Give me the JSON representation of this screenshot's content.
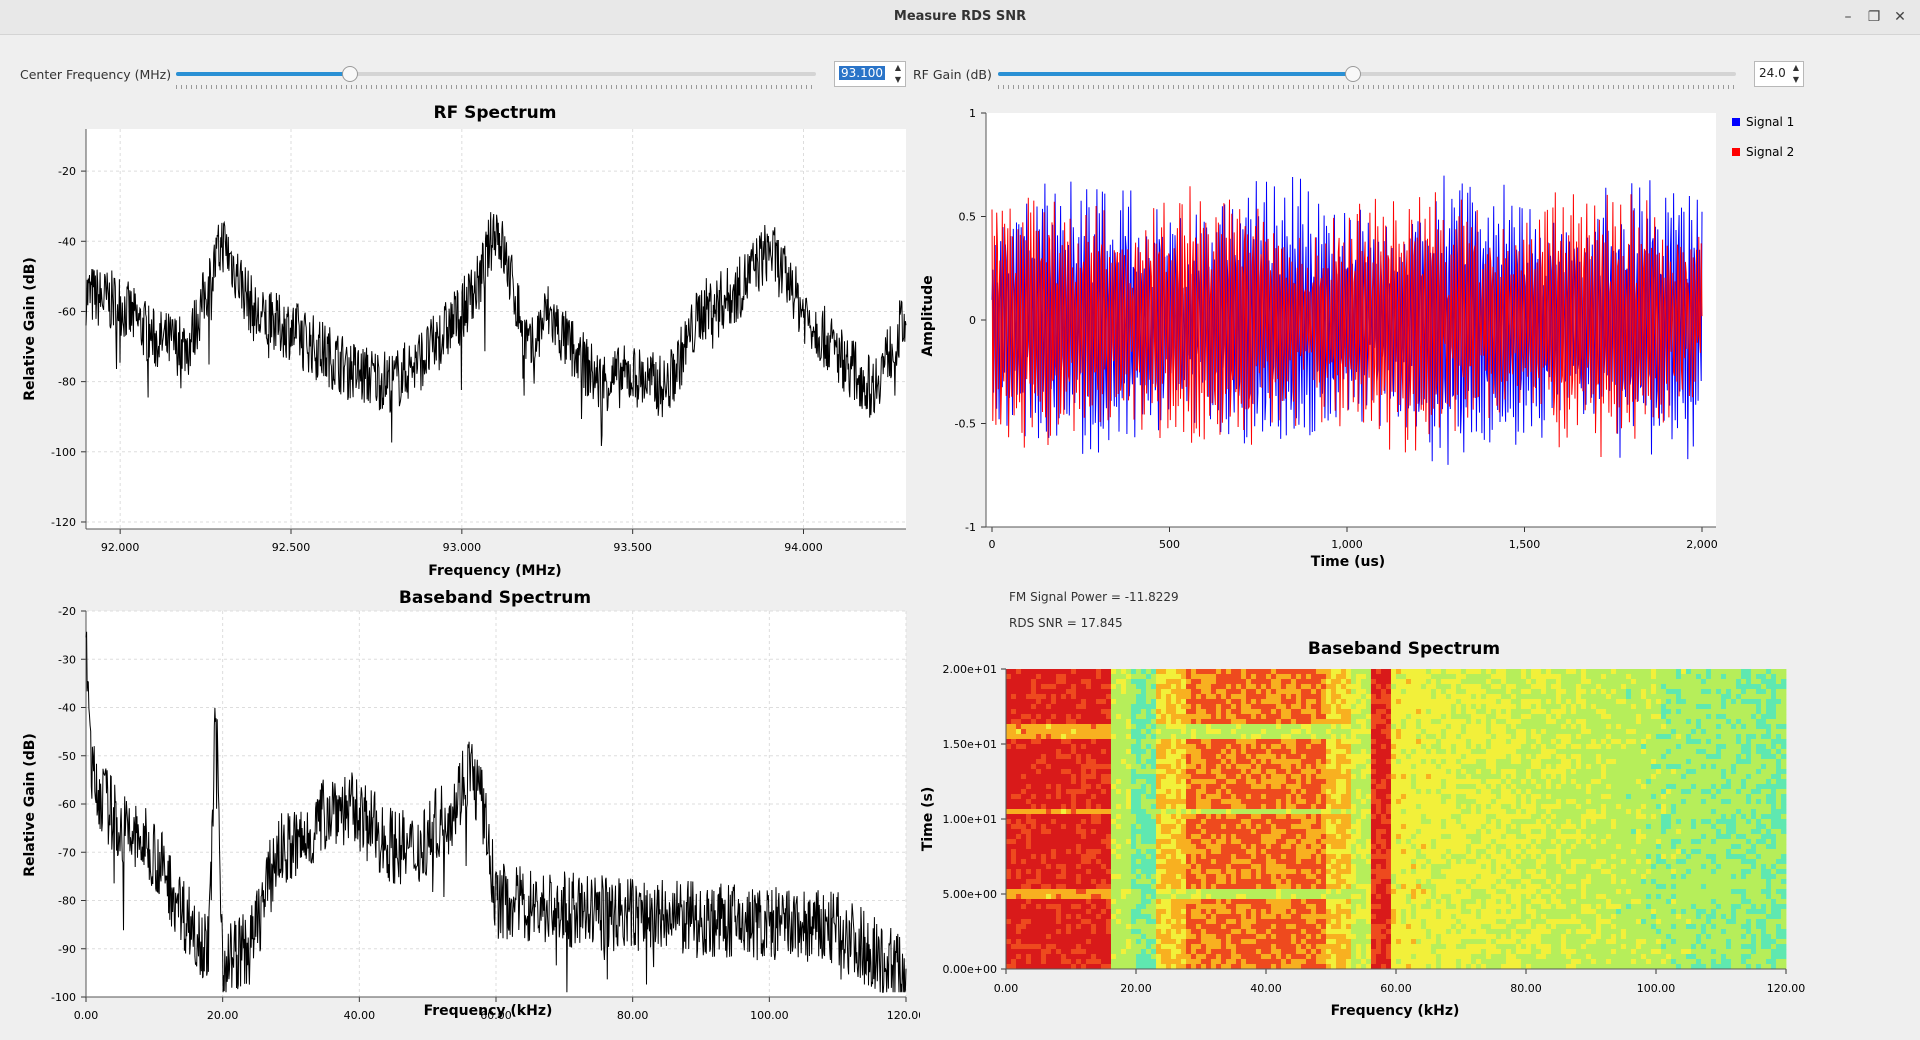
{
  "window": {
    "title": "Measure RDS SNR",
    "controls": {
      "minimize": "–",
      "restore": "❐",
      "close": "✕"
    }
  },
  "controls": {
    "center_freq": {
      "label": "Center Frequency (MHz)",
      "value": "93.100",
      "fraction": 0.27
    },
    "rf_gain": {
      "label": "RF Gain (dB)",
      "value": "24.0",
      "fraction": 0.48
    },
    "spin_up": "▲",
    "spin_down": "▼"
  },
  "rf_spectrum": {
    "title": "RF Spectrum",
    "xlabel": "Frequency (MHz)",
    "ylabel": "Relative Gain (dB)",
    "yticks": [
      "-20",
      "-40",
      "-60",
      "-80",
      "-100",
      "-120"
    ],
    "xticks": [
      "92.000",
      "92.500",
      "93.000",
      "93.500",
      "94.000"
    ]
  },
  "time_plot": {
    "xlabel": "Time (us)",
    "ylabel": "Amplitude",
    "yticks": [
      "1",
      "0.5",
      "0",
      "-0.5",
      "-1"
    ],
    "xticks": [
      "0",
      "500",
      "1,000",
      "1,500",
      "2,000"
    ],
    "legend": [
      "Signal 1",
      "Signal 2"
    ]
  },
  "baseband_spectrum": {
    "title": "Baseband Spectrum",
    "xlabel": "Frequency (kHz)",
    "ylabel": "Relative Gain (dB)",
    "yticks": [
      "-20",
      "-30",
      "-40",
      "-50",
      "-60",
      "-70",
      "-80",
      "-90",
      "-100"
    ],
    "xticks": [
      "0.00",
      "20.00",
      "40.00",
      "60.00",
      "80.00",
      "100.00",
      "120.00"
    ]
  },
  "waterfall": {
    "title": "Baseband Spectrum",
    "xlabel": "Frequency (kHz)",
    "ylabel": "Time (s)",
    "yticks": [
      "2.00e+01",
      "1.50e+01",
      "1.00e+01",
      "5.00e+00",
      "0.00e+00"
    ],
    "xticks": [
      "0.00",
      "20.00",
      "40.00",
      "60.00",
      "80.00",
      "100.00",
      "120.00"
    ]
  },
  "readouts": {
    "fm_power": "FM Signal Power = -11.8229",
    "rds_snr": "RDS SNR = 17.845"
  },
  "colors": {
    "signal1": "#0000ff",
    "signal2": "#ff0000",
    "slider_fill": "#2a90d4"
  },
  "chart_data": [
    {
      "type": "line",
      "title": "RF Spectrum",
      "xlabel": "Frequency (MHz)",
      "ylabel": "Relative Gain (dB)",
      "xlim": [
        91.9,
        94.3
      ],
      "ylim": [
        -122,
        -8
      ],
      "grid": true,
      "series": [
        {
          "x": [
            91.9,
            92.0,
            92.1,
            92.2,
            92.3,
            92.4,
            92.5,
            92.6,
            92.7,
            92.8,
            92.9,
            93.0,
            93.05,
            93.1,
            93.2,
            93.25,
            93.3,
            93.4,
            93.5,
            93.6,
            93.7,
            93.8,
            93.9,
            94.0,
            94.1,
            94.2,
            94.3
          ],
          "values": [
            -55,
            -58,
            -68,
            -70,
            -40,
            -62,
            -65,
            -72,
            -78,
            -80,
            -72,
            -60,
            -52,
            -35,
            -72,
            -60,
            -68,
            -80,
            -78,
            -82,
            -60,
            -55,
            -42,
            -60,
            -72,
            -82,
            -62
          ]
        }
      ]
    },
    {
      "type": "line",
      "xlabel": "Time (us)",
      "ylabel": "Amplitude",
      "xlim": [
        0,
        2000
      ],
      "ylim": [
        -1,
        1
      ],
      "grid": false,
      "legend": "top-right",
      "series": [
        {
          "name": "Signal 1",
          "amplitude": 0.55
        },
        {
          "name": "Signal 2",
          "amplitude": 0.5
        }
      ]
    },
    {
      "type": "line",
      "title": "Baseband Spectrum",
      "xlabel": "Frequency (kHz)",
      "ylabel": "Relative Gain (dB)",
      "xlim": [
        0,
        120
      ],
      "ylim": [
        -100,
        -20
      ],
      "grid": true,
      "series": [
        {
          "x": [
            0,
            1,
            5,
            10,
            14,
            18,
            19,
            20,
            24,
            28,
            32,
            36,
            40,
            44,
            48,
            54,
            56,
            58,
            60,
            70,
            80,
            90,
            100,
            110,
            120
          ],
          "values": [
            -30,
            -55,
            -65,
            -70,
            -82,
            -90,
            -38,
            -92,
            -90,
            -70,
            -68,
            -60,
            -62,
            -68,
            -70,
            -60,
            -52,
            -60,
            -80,
            -82,
            -83,
            -84,
            -85,
            -86,
            -95
          ]
        }
      ]
    },
    {
      "type": "heatmap",
      "title": "Baseband Spectrum",
      "xlabel": "Frequency (kHz)",
      "ylabel": "Time (s)",
      "xlim": [
        0,
        120
      ],
      "ylim": [
        0,
        20
      ]
    }
  ]
}
